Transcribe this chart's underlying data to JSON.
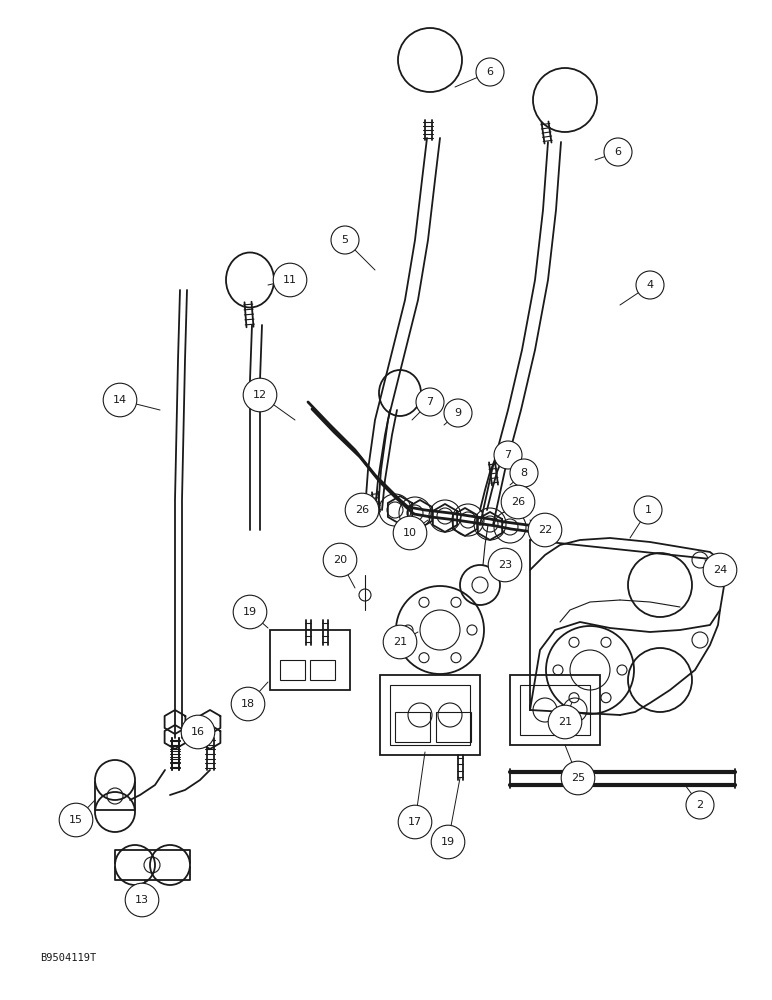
{
  "bg_color": "#ffffff",
  "lc": "#1a1a1a",
  "watermark": "B9504119T",
  "lw": 1.3,
  "lw_thin": 0.8,
  "lw_thick": 2.0
}
